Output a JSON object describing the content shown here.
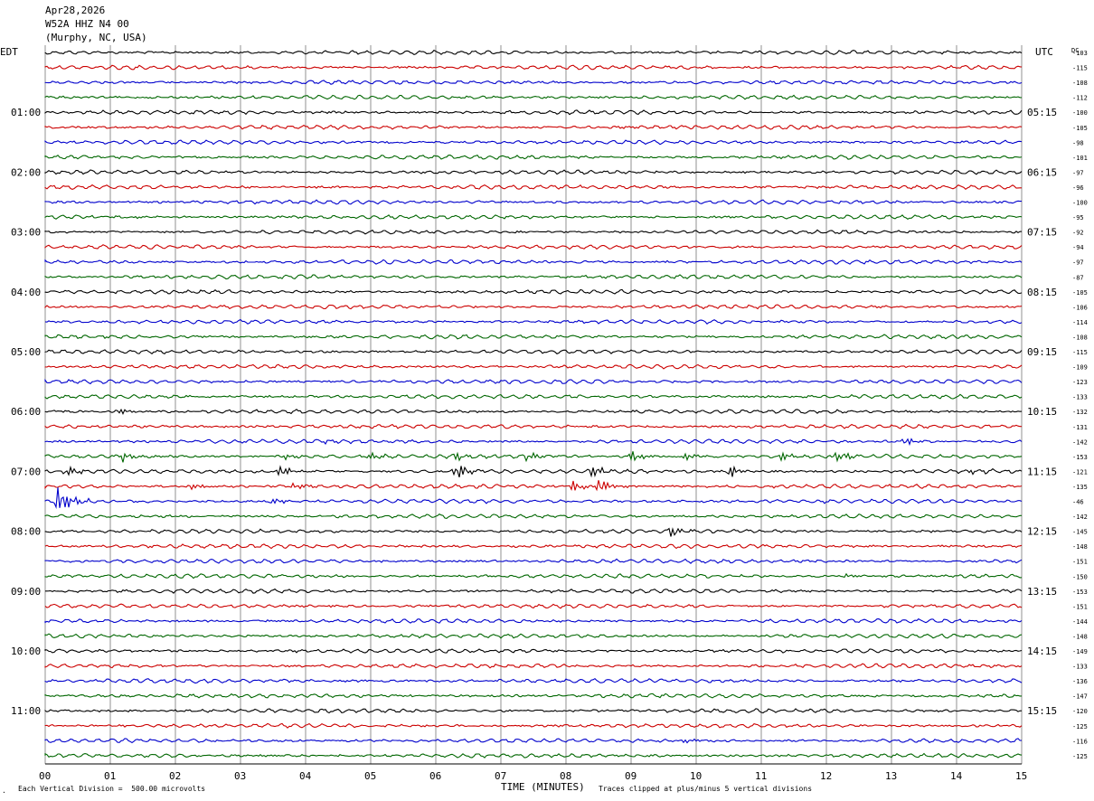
{
  "header": {
    "date": "Apr28,2026",
    "station": "W52A HHZ N4 00",
    "location": "(Murphy, NC, USA)"
  },
  "left_label": "EDT",
  "right_label": "UTC",
  "dc_label": "DC",
  "footer": {
    "scale_note": "Each Vertical Division =  500.00 microvolts",
    "clip_note": "Traces clipped at plus/minus 5 vertical divisions",
    "mark": "."
  },
  "colors": [
    "#000000",
    "#cc0000",
    "#0000cc",
    "#006600"
  ],
  "chart_data": {
    "type": "line",
    "title": "",
    "xlabel": "TIME (MINUTES)",
    "ylabel": "",
    "xlim": [
      0,
      15
    ],
    "x_ticks": [
      "00",
      "01",
      "02",
      "03",
      "04",
      "05",
      "06",
      "07",
      "08",
      "09",
      "10",
      "11",
      "12",
      "13",
      "14",
      "15"
    ],
    "left_time_labels": [
      "01:00",
      "02:00",
      "03:00",
      "04:00",
      "05:00",
      "06:00",
      "07:00",
      "08:00",
      "09:00",
      "10:00",
      "11:00"
    ],
    "right_time_labels": [
      "05:15",
      "06:15",
      "07:15",
      "08:15",
      "09:15",
      "10:15",
      "11:15",
      "12:15",
      "13:15",
      "14:15",
      "15:15"
    ],
    "hour_row_start": 4,
    "rows_per_hour": 4,
    "trace_count": 48,
    "dc_offsets": [
      -103,
      -115,
      -108,
      -112,
      -100,
      -105,
      -98,
      -101,
      -97,
      -96,
      -100,
      -95,
      -92,
      -94,
      -97,
      -87,
      -105,
      -106,
      -114,
      -108,
      -115,
      -109,
      -123,
      -133,
      -132,
      -131,
      -142,
      -153,
      -121,
      -135,
      -46,
      -142,
      -145,
      -148,
      -151,
      -150,
      -153,
      -151,
      -144,
      -148,
      -149,
      -133,
      -136,
      -147,
      -120,
      -125,
      -116,
      -125
    ],
    "grid": true,
    "events": [
      {
        "row": 24,
        "minute": 1.1,
        "size": 4
      },
      {
        "row": 26,
        "minute": 4.3,
        "size": 4
      },
      {
        "row": 26,
        "minute": 13.2,
        "size": 6
      },
      {
        "row": 27,
        "minute": 1.2,
        "size": 6
      },
      {
        "row": 27,
        "minute": 3.7,
        "size": 3
      },
      {
        "row": 27,
        "minute": 5.0,
        "size": 5
      },
      {
        "row": 27,
        "minute": 6.3,
        "size": 6
      },
      {
        "row": 27,
        "minute": 7.4,
        "size": 6
      },
      {
        "row": 27,
        "minute": 9.0,
        "size": 7
      },
      {
        "row": 27,
        "minute": 9.8,
        "size": 5
      },
      {
        "row": 27,
        "minute": 11.3,
        "size": 6
      },
      {
        "row": 27,
        "minute": 12.1,
        "size": 9
      },
      {
        "row": 28,
        "minute": 0.3,
        "size": 7
      },
      {
        "row": 28,
        "minute": 3.6,
        "size": 8
      },
      {
        "row": 28,
        "minute": 6.3,
        "size": 12
      },
      {
        "row": 28,
        "minute": 8.4,
        "size": 8
      },
      {
        "row": 28,
        "minute": 10.5,
        "size": 8
      },
      {
        "row": 28,
        "minute": 14.2,
        "size": 4
      },
      {
        "row": 29,
        "minute": 2.2,
        "size": 6
      },
      {
        "row": 29,
        "minute": 3.8,
        "size": 4
      },
      {
        "row": 29,
        "minute": 8.1,
        "size": 7
      },
      {
        "row": 29,
        "minute": 8.5,
        "size": 10
      },
      {
        "row": 30,
        "minute": 0.2,
        "size": 20
      },
      {
        "row": 30,
        "minute": 3.5,
        "size": 4
      },
      {
        "row": 32,
        "minute": 9.6,
        "size": 6
      },
      {
        "row": 35,
        "minute": 12.3,
        "size": 3
      },
      {
        "row": 46,
        "minute": 9.8,
        "size": 3
      }
    ]
  }
}
